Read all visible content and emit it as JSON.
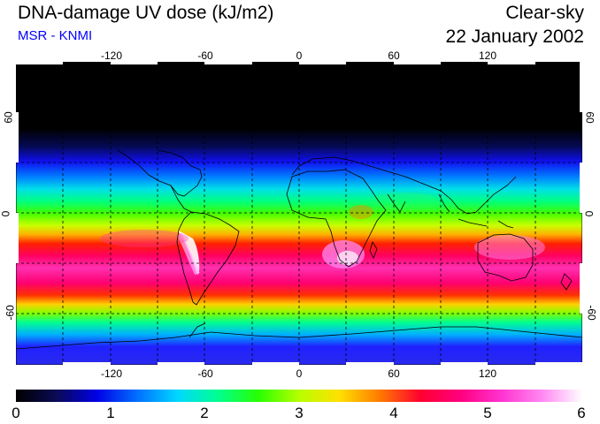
{
  "header": {
    "title": "DNA-damage UV dose (kJ/m2)",
    "source": "MSR - KNMI",
    "condition": "Clear-sky",
    "date": "22 January 2002"
  },
  "colors": {
    "source_text": "#0000ff",
    "scale": [
      "#000000",
      "#0a0a55",
      "#0000e6",
      "#0070ff",
      "#00d8ff",
      "#00ff90",
      "#28ff00",
      "#b8ff00",
      "#ffe000",
      "#ff7a00",
      "#ff0030",
      "#ff0080",
      "#ff33d0",
      "#ff88f2",
      "#ffffff"
    ]
  },
  "map": {
    "lon_ticks": [
      "-120",
      "-60",
      "0",
      "60",
      "120"
    ],
    "lat_ticks": [
      "60",
      "0",
      "-60"
    ],
    "lon_values": [
      -120,
      -60,
      0,
      60,
      120
    ],
    "lat_values": [
      60,
      0,
      -60
    ],
    "lon_range": [
      -180,
      180
    ],
    "lat_range": [
      -90,
      90
    ],
    "gridlines": "dashed every 30 degrees"
  },
  "colorbar": {
    "labels": [
      "0",
      "1",
      "2",
      "3",
      "4",
      "5",
      "6"
    ],
    "min": 0,
    "max": 6,
    "units": "kJ/m2"
  }
}
